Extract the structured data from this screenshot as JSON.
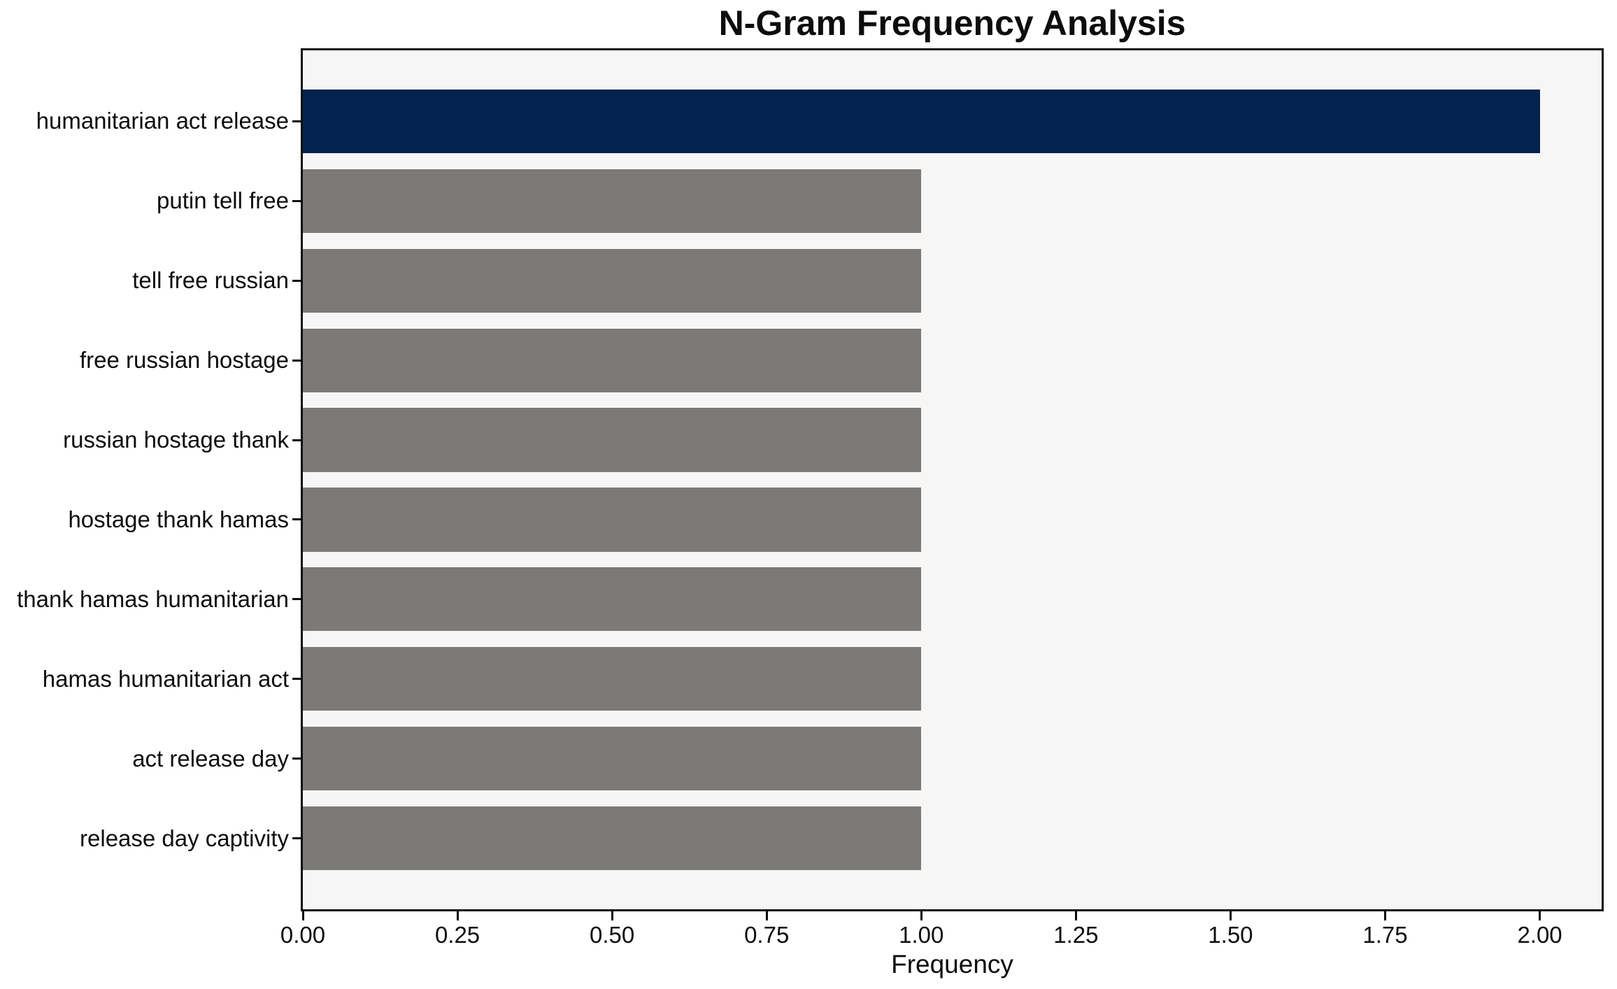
{
  "chart_data": {
    "type": "bar",
    "orientation": "horizontal",
    "title": "N-Gram Frequency Analysis",
    "xlabel": "Frequency",
    "ylabel": "",
    "categories": [
      "humanitarian act release",
      "putin tell free",
      "tell free russian",
      "free russian hostage",
      "russian hostage thank",
      "hostage thank hamas",
      "thank hamas humanitarian",
      "hamas humanitarian act",
      "act release day",
      "release day captivity"
    ],
    "values": [
      2,
      1,
      1,
      1,
      1,
      1,
      1,
      1,
      1,
      1
    ],
    "xlim": [
      0,
      2.1
    ],
    "xticks": [
      0,
      0.25,
      0.5,
      0.75,
      1.0,
      1.25,
      1.5,
      1.75,
      2.0
    ],
    "xtick_labels": [
      "0.00",
      "0.25",
      "0.50",
      "0.75",
      "1.00",
      "1.25",
      "1.50",
      "1.75",
      "2.00"
    ],
    "grid": false,
    "legend": null,
    "highlight_index": 0,
    "bar_height_fraction": 0.8,
    "colors": {
      "highlight_bar": "#02234d",
      "default_bar": "#7b7a77",
      "plot_background": "#f7f6f6",
      "figure_background": "#ffffff",
      "spine": "#0d0d0d",
      "text": "#0d0d0d"
    }
  }
}
